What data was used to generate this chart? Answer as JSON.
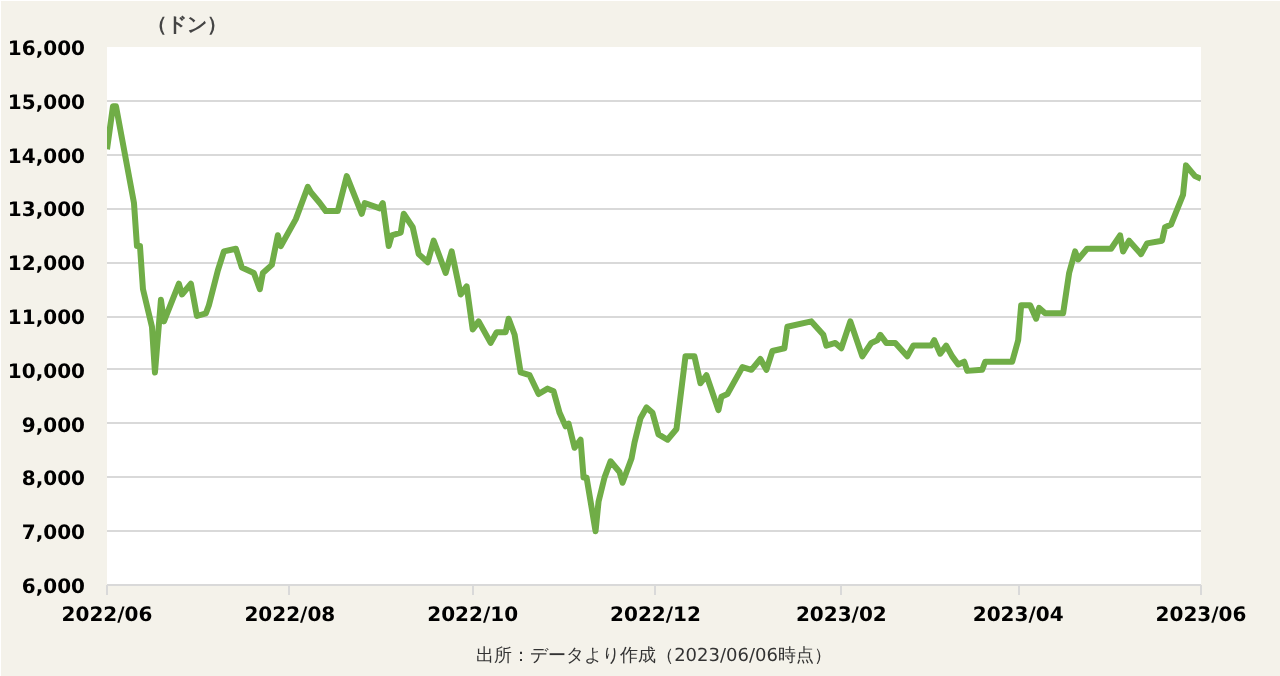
{
  "chart_data": {
    "type": "line",
    "ylabel": "（ドン）",
    "annotations": [
      "出所：データより作成（2023/06/06時点）"
    ],
    "xlim": [
      "2022-06-01",
      "2023-06-01"
    ],
    "xticks": [
      {
        "value": "2022-06-01",
        "label": "2022/06"
      },
      {
        "value": "2022-08-01",
        "label": "2022/08"
      },
      {
        "value": "2022-10-01",
        "label": "2022/10"
      },
      {
        "value": "2022-12-01",
        "label": "2022/12"
      },
      {
        "value": "2023-02-01",
        "label": "2023/02"
      },
      {
        "value": "2023-04-01",
        "label": "2023/04"
      },
      {
        "value": "2023-06-01",
        "label": "2023/06"
      }
    ],
    "ylim": [
      6000,
      16000
    ],
    "yticks": [
      {
        "value": 6000,
        "label": "6,000"
      },
      {
        "value": 7000,
        "label": "7,000"
      },
      {
        "value": 8000,
        "label": "8,000"
      },
      {
        "value": 9000,
        "label": "9,000"
      },
      {
        "value": 10000,
        "label": "10,000"
      },
      {
        "value": 11000,
        "label": "11,000"
      },
      {
        "value": 12000,
        "label": "12,000"
      },
      {
        "value": 13000,
        "label": "13,000"
      },
      {
        "value": 14000,
        "label": "14,000"
      },
      {
        "value": 15000,
        "label": "15,000"
      },
      {
        "value": 16000,
        "label": "16,000"
      }
    ],
    "grid": "y",
    "marker": "none",
    "line_style": "solid",
    "series": [
      {
        "color": "#70ad47",
        "x": [
          "2022-06-01",
          "2022-06-03",
          "2022-06-04",
          "2022-06-06",
          "2022-06-10",
          "2022-06-11",
          "2022-06-12",
          "2022-06-13",
          "2022-06-16",
          "2022-06-17",
          "2022-06-19",
          "2022-06-20",
          "2022-06-25",
          "2022-06-26",
          "2022-06-29",
          "2022-07-01",
          "2022-07-04",
          "2022-07-05",
          "2022-07-08",
          "2022-07-10",
          "2022-07-14",
          "2022-07-16",
          "2022-07-20",
          "2022-07-22",
          "2022-07-23",
          "2022-07-26",
          "2022-07-28",
          "2022-07-29",
          "2022-08-03",
          "2022-08-07",
          "2022-08-08",
          "2022-08-11",
          "2022-08-13",
          "2022-08-17",
          "2022-08-20",
          "2022-08-25",
          "2022-08-26",
          "2022-08-31",
          "2022-09-01",
          "2022-09-03",
          "2022-09-04",
          "2022-09-07",
          "2022-09-08",
          "2022-09-11",
          "2022-09-13",
          "2022-09-16",
          "2022-09-18",
          "2022-09-22",
          "2022-09-24",
          "2022-09-27",
          "2022-09-29",
          "2022-10-01",
          "2022-10-03",
          "2022-10-07",
          "2022-10-09",
          "2022-10-12",
          "2022-10-13",
          "2022-10-15",
          "2022-10-17",
          "2022-10-20",
          "2022-10-23",
          "2022-10-26",
          "2022-10-28",
          "2022-10-30",
          "2022-11-01",
          "2022-11-02",
          "2022-11-04",
          "2022-11-06",
          "2022-11-07",
          "2022-11-08",
          "2022-11-11",
          "2022-11-12",
          "2022-11-14",
          "2022-11-16",
          "2022-11-19",
          "2022-11-20",
          "2022-11-23",
          "2022-11-24",
          "2022-11-26",
          "2022-11-28",
          "2022-11-30",
          "2022-12-02",
          "2022-12-05",
          "2022-12-08",
          "2022-12-11",
          "2022-12-14",
          "2022-12-16",
          "2022-12-18",
          "2022-12-22",
          "2022-12-23",
          "2022-12-25",
          "2022-12-30",
          "2023-01-02",
          "2023-01-05",
          "2023-01-07",
          "2023-01-09",
          "2023-01-13",
          "2023-01-14",
          "2023-01-22",
          "2023-01-26",
          "2023-01-27",
          "2023-01-30",
          "2023-02-01",
          "2023-02-04",
          "2023-02-08",
          "2023-02-11",
          "2023-02-13",
          "2023-02-14",
          "2023-02-16",
          "2023-02-19",
          "2023-02-23",
          "2023-02-25",
          "2023-03-03",
          "2023-03-04",
          "2023-03-06",
          "2023-03-08",
          "2023-03-10",
          "2023-03-12",
          "2023-03-14",
          "2023-03-15",
          "2023-03-20",
          "2023-03-21",
          "2023-03-30",
          "2023-04-01",
          "2023-04-02",
          "2023-04-05",
          "2023-04-07",
          "2023-04-08",
          "2023-04-10",
          "2023-04-16",
          "2023-04-18",
          "2023-04-20",
          "2023-04-21",
          "2023-04-24",
          "2023-05-02",
          "2023-05-05",
          "2023-05-06",
          "2023-05-08",
          "2023-05-12",
          "2023-05-14",
          "2023-05-19",
          "2023-05-20",
          "2023-05-22",
          "2023-05-26",
          "2023-05-27",
          "2023-05-30",
          "2023-06-01"
        ],
        "values": [
          14100,
          14900,
          14900,
          14300,
          13100,
          12300,
          12300,
          11500,
          10800,
          9950,
          11300,
          10900,
          11600,
          11400,
          11600,
          11000,
          11050,
          11200,
          11850,
          12200,
          12250,
          11900,
          11800,
          11500,
          11800,
          11950,
          12500,
          12300,
          12800,
          13400,
          13300,
          13100,
          12950,
          12950,
          13600,
          12900,
          13100,
          13000,
          13100,
          12300,
          12500,
          12550,
          12900,
          12650,
          12150,
          12000,
          12400,
          11800,
          12200,
          11400,
          11550,
          10750,
          10900,
          10500,
          10700,
          10700,
          10950,
          10650,
          9950,
          9900,
          9550,
          9650,
          9600,
          9200,
          8950,
          9000,
          8550,
          8700,
          8000,
          8000,
          7000,
          7550,
          8000,
          8300,
          8100,
          7900,
          8350,
          8650,
          9100,
          9300,
          9200,
          8800,
          8700,
          8900,
          10250,
          10250,
          9750,
          9900,
          9250,
          9500,
          9550,
          10050,
          10000,
          10200,
          10000,
          10350,
          10400,
          10800,
          10900,
          10650,
          10450,
          10500,
          10400,
          10900,
          10250,
          10500,
          10550,
          10650,
          10500,
          10500,
          10250,
          10450,
          10450,
          10550,
          10300,
          10450,
          10250,
          10100,
          10150,
          9980,
          10000,
          10150,
          10150,
          10550,
          11200,
          11200,
          10950,
          11150,
          11050,
          11050,
          11800,
          12200,
          12050,
          12250,
          12250,
          12500,
          12200,
          12400,
          12150,
          12350,
          12400,
          12650,
          12700,
          13250,
          13800,
          13600,
          13550
        ]
      }
    ]
  }
}
